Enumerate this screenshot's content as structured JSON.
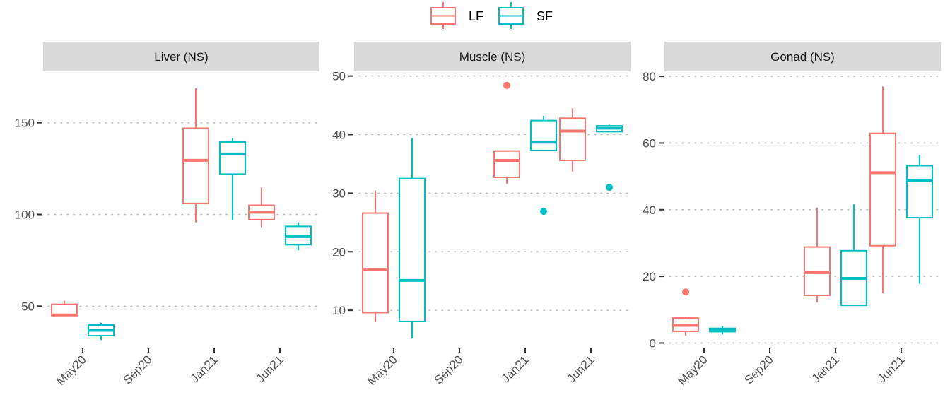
{
  "chart_data": {
    "type": "box",
    "layout": "facet-wrap-3-columns",
    "legend": {
      "position": "top",
      "entries": [
        {
          "label": "LF",
          "color": "#F8766D"
        },
        {
          "label": "SF",
          "color": "#00BFC4"
        }
      ]
    },
    "grid": {
      "major_y": "dotted",
      "x": false
    },
    "categories": [
      "May20",
      "Sep20",
      "Jan21",
      "Jun21"
    ],
    "panels": [
      {
        "title": "Liver (NS)",
        "ylim": [
          27,
          178
        ],
        "yticks": [
          50,
          100,
          150
        ],
        "series": [
          {
            "name": "LF",
            "boxes": [
              {
                "category": "May20",
                "whisker_low": 44.9,
                "q1": 44.9,
                "median": 45.2,
                "q3": 51.0,
                "whisker_high": 53.0,
                "outliers": []
              },
              {
                "category": "Jan21",
                "whisker_low": 95.7,
                "q1": 106.0,
                "median": 129.5,
                "q3": 147.0,
                "whisker_high": 168.8,
                "outliers": []
              },
              {
                "category": "Jun21",
                "whisker_low": 93.1,
                "q1": 97.2,
                "median": 101.2,
                "q3": 105.0,
                "whisker_high": 114.7,
                "outliers": []
              }
            ]
          },
          {
            "name": "SF",
            "boxes": [
              {
                "category": "May20",
                "whisker_low": 31.5,
                "q1": 33.9,
                "median": 36.8,
                "q3": 39.7,
                "whisker_high": 41.0,
                "outliers": []
              },
              {
                "category": "Jan21",
                "whisker_low": 96.8,
                "q1": 122.0,
                "median": 133.0,
                "q3": 139.5,
                "whisker_high": 141.5,
                "outliers": []
              },
              {
                "category": "Jun21",
                "whisker_low": 80.5,
                "q1": 83.5,
                "median": 87.9,
                "q3": 93.5,
                "whisker_high": 95.7,
                "outliers": []
              }
            ]
          }
        ]
      },
      {
        "title": "Muscle (NS)",
        "ylim": [
          3.5,
          50.8
        ],
        "yticks": [
          10,
          20,
          30,
          40,
          50
        ],
        "series": [
          {
            "name": "LF",
            "boxes": [
              {
                "category": "May20",
                "whisker_low": 8.0,
                "q1": 9.6,
                "median": 17.0,
                "q3": 26.6,
                "whisker_high": 30.5,
                "outliers": []
              },
              {
                "category": "Jan21",
                "whisker_low": 31.6,
                "q1": 32.7,
                "median": 35.6,
                "q3": 37.2,
                "whisker_high": 37.3,
                "outliers": [
                  48.4
                ]
              },
              {
                "category": "Jun21",
                "whisker_low": 33.7,
                "q1": 35.6,
                "median": 40.6,
                "q3": 42.8,
                "whisker_high": 44.5,
                "outliers": []
              }
            ]
          },
          {
            "name": "SF",
            "boxes": [
              {
                "category": "May20",
                "whisker_low": 5.2,
                "q1": 8.1,
                "median": 15.1,
                "q3": 32.5,
                "whisker_high": 39.4,
                "outliers": []
              },
              {
                "category": "Jan21",
                "whisker_low": 37.3,
                "q1": 37.3,
                "median": 38.7,
                "q3": 42.4,
                "whisker_high": 43.2,
                "outliers": [
                  26.9
                ]
              },
              {
                "category": "Jun21",
                "whisker_low": 40.5,
                "q1": 40.5,
                "median": 41.1,
                "q3": 41.5,
                "whisker_high": 41.7,
                "outliers": [
                  31.0
                ]
              }
            ]
          }
        ]
      },
      {
        "title": "Gonad (NS)",
        "ylim": [
          -1.6,
          81.5
        ],
        "yticks": [
          0,
          20,
          40,
          60,
          80
        ],
        "series": [
          {
            "name": "LF",
            "boxes": [
              {
                "category": "May20",
                "whisker_low": 2.2,
                "q1": 3.5,
                "median": 5.3,
                "q3": 7.5,
                "whisker_high": 7.9,
                "outliers": [
                  15.3
                ]
              },
              {
                "category": "Jan21",
                "whisker_low": 12.2,
                "q1": 14.3,
                "median": 21.1,
                "q3": 28.8,
                "whisker_high": 40.6,
                "outliers": []
              },
              {
                "category": "Jun21",
                "whisker_low": 15.0,
                "q1": 29.2,
                "median": 51.1,
                "q3": 62.9,
                "whisker_high": 77.0,
                "outliers": []
              }
            ]
          },
          {
            "name": "SF",
            "boxes": [
              {
                "category": "May20",
                "whisker_low": 2.6,
                "q1": 3.4,
                "median": 3.9,
                "q3": 4.4,
                "whisker_high": 5.1,
                "outliers": []
              },
              {
                "category": "Jan21",
                "whisker_low": 11.3,
                "q1": 11.3,
                "median": 19.4,
                "q3": 27.7,
                "whisker_high": 41.7,
                "outliers": []
              },
              {
                "category": "Jun21",
                "whisker_low": 17.8,
                "q1": 37.6,
                "median": 48.8,
                "q3": 53.2,
                "whisker_high": 56.4,
                "outliers": []
              }
            ]
          }
        ]
      }
    ],
    "title": "",
    "xlabel": "",
    "ylabel": ""
  }
}
